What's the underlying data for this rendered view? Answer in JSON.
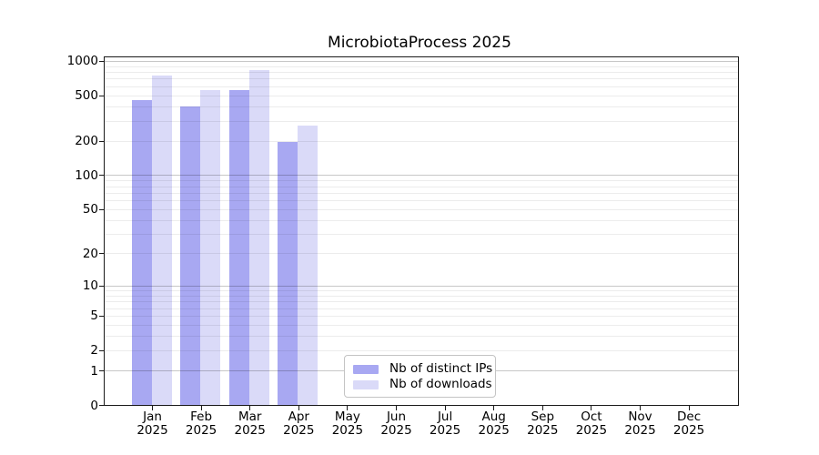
{
  "chart_data": {
    "type": "bar",
    "title": "MicrobiotaProcess 2025",
    "year_suffix": "2025",
    "categories": [
      "Jan",
      "Feb",
      "Mar",
      "Apr",
      "May",
      "Jun",
      "Jul",
      "Aug",
      "Sep",
      "Oct",
      "Nov",
      "Dec"
    ],
    "series": [
      {
        "name": "Nb of distinct IPs",
        "color": "#a8a8f2",
        "values": [
          455,
          405,
          557,
          196,
          null,
          null,
          null,
          null,
          null,
          null,
          null,
          null
        ]
      },
      {
        "name": "Nb of downloads",
        "color": "#dadaf8",
        "values": [
          750,
          560,
          833,
          276,
          null,
          null,
          null,
          null,
          null,
          null,
          null,
          null
        ]
      }
    ],
    "y_axis": {
      "ticks": [
        0,
        1,
        2,
        5,
        10,
        20,
        50,
        100,
        200,
        500,
        1000
      ],
      "scale": "log10(1+value)",
      "range_top": 1130
    },
    "x_axis": {
      "label_format": "month over year, two lines"
    },
    "grid": {
      "horizontal": true,
      "minor_gridlines": true,
      "major_gridline_values": [
        1,
        10,
        100,
        1000
      ]
    },
    "legend": {
      "position": "inside-bottom-center",
      "items": [
        "Nb of distinct IPs",
        "Nb of downloads"
      ]
    }
  }
}
